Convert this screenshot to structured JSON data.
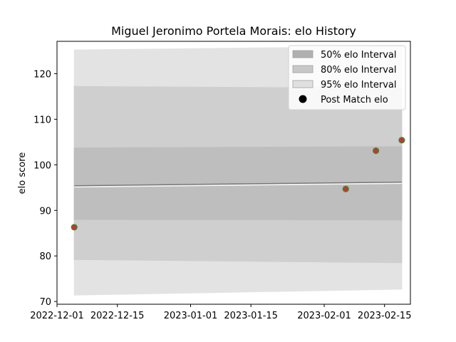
{
  "chart_data": {
    "type": "line",
    "title": "Miguel Jeronimo Portela Morais: elo History",
    "xlabel": "",
    "ylabel": "elo score",
    "xlim": [
      "2022-12-01",
      "2023-02-21"
    ],
    "ylim": [
      69.4,
      127.1
    ],
    "x_ticks": [
      "2022-12-01",
      "2022-12-15",
      "2023-01-01",
      "2023-01-15",
      "2023-02-01",
      "2023-02-15"
    ],
    "y_ticks": [
      70,
      80,
      90,
      100,
      110,
      120
    ],
    "grid": false,
    "legend_position": "top-right",
    "bands": [
      {
        "name": "95% elo Interval",
        "x": [
          "2022-12-05",
          "2023-02-19"
        ],
        "lower": [
          71.4,
          72.7
        ],
        "upper": [
          125.2,
          126.0
        ],
        "color": "#e3e3e3"
      },
      {
        "name": "80% elo Interval",
        "x": [
          "2022-12-05",
          "2023-02-19"
        ],
        "lower": [
          79.2,
          78.5
        ],
        "upper": [
          117.2,
          116.8
        ],
        "color": "#cfcfcf"
      },
      {
        "name": "50% elo Interval",
        "x": [
          "2022-12-05",
          "2023-02-19"
        ],
        "lower": [
          88.0,
          87.9
        ],
        "upper": [
          103.7,
          104.0
        ],
        "color": "#bebebe"
      }
    ],
    "mean_line": {
      "x": [
        "2022-12-05",
        "2023-02-19"
      ],
      "y": [
        95.4,
        96.2
      ],
      "color": "#777777"
    },
    "points": {
      "name": "Post Match elo",
      "x": [
        "2022-12-05",
        "2023-02-06",
        "2023-02-13",
        "2023-02-19"
      ],
      "y": [
        86.3,
        94.7,
        103.1,
        105.4
      ],
      "color": "#c0392b",
      "edge_color": "#3a8a3a"
    },
    "legend": [
      {
        "label": "50% elo Interval",
        "kind": "patch",
        "color": "#b0b0b0"
      },
      {
        "label": "80% elo Interval",
        "kind": "patch",
        "color": "#c8c8c8"
      },
      {
        "label": "95% elo Interval",
        "kind": "patch",
        "color": "#e0e0e0"
      },
      {
        "label": "Post Match elo",
        "kind": "marker",
        "color": "#000000"
      }
    ]
  }
}
